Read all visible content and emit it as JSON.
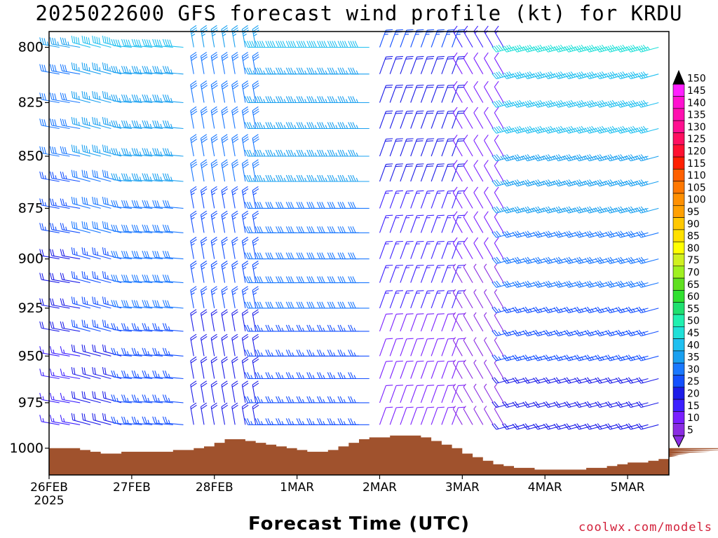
{
  "title": "2025022600 GFS forecast wind profile (kt) for KRDU",
  "xlabel": "Forecast Time (UTC)",
  "credit": "coolwx.com/models",
  "colors": {
    "terrain": "#a0522d",
    "axis": "#000000"
  },
  "chart_data": {
    "type": "wind-barb-profile",
    "title": "2025022600 GFS forecast wind profile (kt) for KRDU",
    "xlabel": "Forecast Time (UTC)",
    "ylabel": "",
    "y_scale": "pressure (inverted)",
    "ylim": [
      1015,
      793
    ],
    "y_ticks": [
      800,
      825,
      850,
      875,
      900,
      925,
      950,
      975,
      1000
    ],
    "x_ticks": [
      "26FEB",
      "27FEB",
      "28FEB",
      "1MAR",
      "2MAR",
      "3MAR",
      "4MAR",
      "5MAR"
    ],
    "x_tick_sub": "2025",
    "x_range_days": [
      0,
      7.5
    ],
    "timestep_hours": 3,
    "surface_pressure": [
      1000,
      1000,
      1000,
      1001,
      1002,
      1003,
      1003,
      1002,
      1002,
      1002,
      1002,
      1002,
      1001,
      1001,
      1000,
      999,
      997,
      995,
      995,
      996,
      997,
      998,
      999,
      1000,
      1001,
      1002,
      1002,
      1001,
      999,
      997,
      995,
      994,
      994,
      993,
      993,
      993,
      994,
      996,
      998,
      1000,
      1003,
      1005,
      1007,
      1009,
      1010,
      1011,
      1011,
      1012,
      1012,
      1012,
      1012,
      1012,
      1011,
      1011,
      1010,
      1009,
      1008,
      1008,
      1007,
      1006,
      1005,
      1004,
      1003,
      1003,
      1002,
      1002,
      1001,
      1001,
      1000
    ],
    "wind_speed_colorbar": [
      5,
      10,
      15,
      20,
      25,
      30,
      35,
      40,
      45,
      50,
      55,
      60,
      65,
      70,
      75,
      80,
      85,
      90,
      95,
      100,
      105,
      110,
      115,
      120,
      125,
      130,
      135,
      140,
      145,
      150
    ],
    "colorbar_colors": [
      "#8a2be2",
      "#7a1fff",
      "#3c1fff",
      "#1c1ce8",
      "#1450ff",
      "#1a78ff",
      "#1aa0f0",
      "#20c0f0",
      "#20e0d8",
      "#20f0b0",
      "#20e070",
      "#30e030",
      "#60e020",
      "#a0f020",
      "#d0f020",
      "#ffff00",
      "#ffe000",
      "#ffc800",
      "#ffa000",
      "#ff9000",
      "#ff7800",
      "#ff6000",
      "#ff2000",
      "#ff1030",
      "#ff1060",
      "#ff1090",
      "#ff10b0",
      "#ff10d0",
      "#ff20ff",
      "#000000"
    ],
    "profile_levels": [
      800,
      812,
      825,
      837,
      850,
      862,
      875,
      887,
      900,
      912,
      925,
      937,
      950,
      962,
      975,
      987
    ],
    "wind_regimes": [
      {
        "day_start": 0.0,
        "day_end": 0.5,
        "direction_deg": 280,
        "speed_kt": [
          15,
          35
        ]
      },
      {
        "day_start": 0.5,
        "day_end": 1.0,
        "direction_deg": 285,
        "speed_kt": [
          20,
          40
        ]
      },
      {
        "day_start": 1.0,
        "day_end": 1.7,
        "direction_deg": 275,
        "speed_kt": [
          25,
          40
        ]
      },
      {
        "day_start": 1.7,
        "day_end": 2.6,
        "direction_deg": 350,
        "speed_kt": [
          20,
          35
        ]
      },
      {
        "day_start": 2.6,
        "day_end": 3.9,
        "direction_deg": 270,
        "speed_kt": [
          25,
          40
        ]
      },
      {
        "day_start": 3.9,
        "day_end": 5.0,
        "direction_deg": 20,
        "speed_kt": [
          10,
          25
        ]
      },
      {
        "day_start": 5.0,
        "day_end": 5.6,
        "direction_deg": 330,
        "speed_kt": [
          5,
          15
        ]
      },
      {
        "day_start": 5.6,
        "day_end": 7.5,
        "direction_deg": 255,
        "speed_kt": [
          20,
          45
        ]
      }
    ]
  }
}
